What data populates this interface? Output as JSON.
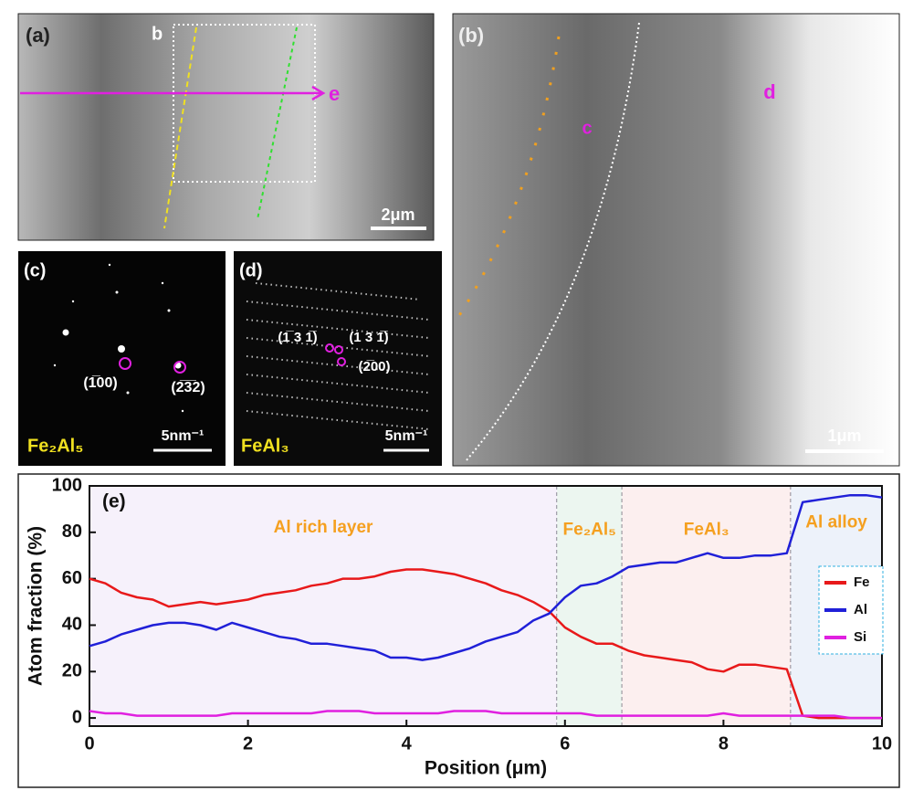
{
  "panels": {
    "a": {
      "label": "(a)",
      "box_label": "b",
      "arrow_label": "e",
      "scale": "2μm"
    },
    "b": {
      "label": "(b)",
      "region_c": "c",
      "region_d": "d",
      "scale": "1μm"
    },
    "c": {
      "label": "(c)",
      "spot1": "(1̅00)",
      "spot2": "(2̅3̅2)",
      "phase": "Fe₂Al₅",
      "scale": "5nm⁻¹"
    },
    "d": {
      "label": "(d)",
      "spot1": "(1̅ 3 1̅)",
      "spot2": "(1 3 1̅)",
      "spot3": "(2̅00)",
      "phase": "FeAl₃",
      "scale": "5nm⁻¹"
    }
  },
  "chart_data": {
    "type": "line",
    "panel_label": "(e)",
    "x_label": "Position (μm)",
    "y_label": "Atom fraction (%)",
    "x": [
      0,
      0.2,
      0.4,
      0.6,
      0.8,
      1,
      1.2,
      1.4,
      1.6,
      1.8,
      2,
      2.2,
      2.4,
      2.6,
      2.8,
      3,
      3.2,
      3.4,
      3.6,
      3.8,
      4,
      4.2,
      4.4,
      4.6,
      4.8,
      5,
      5.2,
      5.4,
      5.6,
      5.8,
      6,
      6.2,
      6.4,
      6.6,
      6.8,
      7,
      7.2,
      7.4,
      7.6,
      7.8,
      8,
      8.2,
      8.4,
      8.6,
      8.8,
      9,
      9.2,
      9.4,
      9.6,
      9.8,
      10
    ],
    "series": [
      {
        "name": "Fe",
        "color": "#e8191a",
        "values": [
          60,
          58,
          54,
          52,
          51,
          48,
          49,
          50,
          49,
          50,
          51,
          53,
          54,
          55,
          57,
          58,
          60,
          60,
          61,
          63,
          64,
          64,
          63,
          62,
          60,
          58,
          55,
          53,
          50,
          46,
          39,
          35,
          32,
          32,
          29,
          27,
          26,
          25,
          24,
          21,
          20,
          23,
          23,
          22,
          21,
          1,
          0,
          0,
          0,
          0,
          0
        ]
      },
      {
        "name": "Al",
        "color": "#2020d8",
        "values": [
          31,
          33,
          36,
          38,
          40,
          41,
          41,
          40,
          38,
          41,
          39,
          37,
          35,
          34,
          32,
          32,
          31,
          30,
          29,
          26,
          26,
          25,
          26,
          28,
          30,
          33,
          35,
          37,
          42,
          45,
          52,
          57,
          58,
          61,
          65,
          66,
          67,
          67,
          69,
          71,
          69,
          69,
          70,
          70,
          71,
          93,
          94,
          95,
          96,
          96,
          95
        ]
      },
      {
        "name": "Si",
        "color": "#e020e0",
        "values": [
          3,
          2,
          2,
          1,
          1,
          1,
          1,
          1,
          1,
          2,
          2,
          2,
          2,
          2,
          2,
          3,
          3,
          3,
          2,
          2,
          2,
          2,
          2,
          3,
          3,
          3,
          2,
          2,
          2,
          2,
          2,
          2,
          1,
          1,
          1,
          1,
          1,
          1,
          1,
          1,
          2,
          1,
          1,
          1,
          1,
          1,
          1,
          1,
          0,
          0,
          0
        ]
      }
    ],
    "regions": [
      {
        "name": "Al rich layer",
        "start": 0,
        "end": 5.9,
        "color": "#f6f1fb"
      },
      {
        "name": "Fe₂Al₅",
        "start": 5.9,
        "end": 6.72,
        "color": "#ecf6f0"
      },
      {
        "name": "FeAl₃",
        "start": 6.72,
        "end": 8.85,
        "color": "#fcefef"
      },
      {
        "name": "Al alloy",
        "start": 8.85,
        "end": 10,
        "color": "#edf2fa"
      }
    ],
    "xlim": [
      0,
      10
    ],
    "xticks": [
      0,
      2,
      4,
      6,
      8,
      10
    ],
    "ylim": [
      -3.5,
      100
    ],
    "yticks": [
      0,
      20,
      40,
      60,
      80,
      100
    ],
    "legend": "right"
  }
}
